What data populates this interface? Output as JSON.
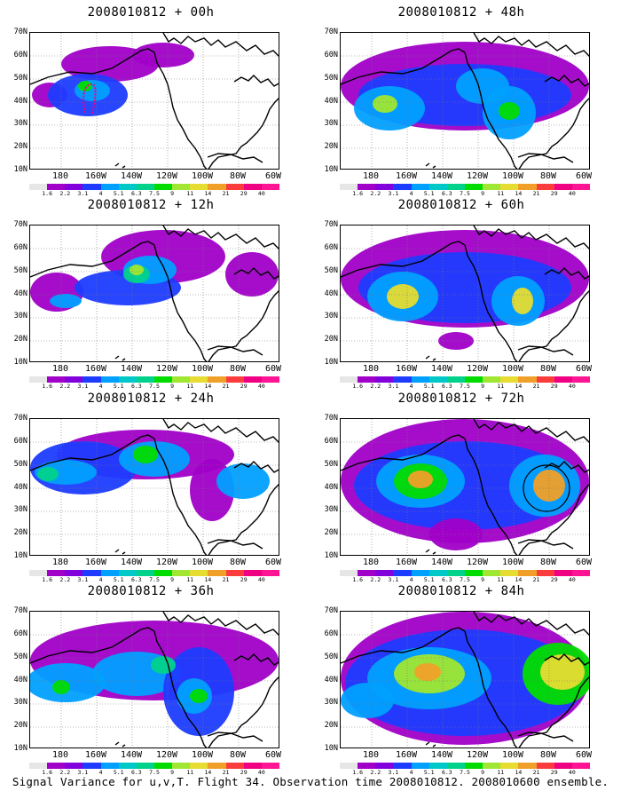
{
  "caption": "Signal Variance for u,v,T. Flight 34. Observation time 2008010812. 2008010600 ensemble.",
  "lat_labels": [
    "70N",
    "60N",
    "50N",
    "40N",
    "30N",
    "20N",
    "10N"
  ],
  "lon_labels": [
    "180",
    "160W",
    "140W",
    "120W",
    "100W",
    "80W",
    "60W"
  ],
  "colorbar": {
    "levels": [
      "1.6",
      "2.2",
      "3.1",
      "4",
      "5.1",
      "6.3",
      "7.5",
      "9",
      "11",
      "14",
      "21",
      "29",
      "40"
    ],
    "colors": [
      "#e6e6e6",
      "#a000c8",
      "#8200dc",
      "#1e3cff",
      "#00a0ff",
      "#00c8c8",
      "#00d28c",
      "#00dc00",
      "#a0e632",
      "#e6dc32",
      "#f0a028",
      "#fa3c3c",
      "#f00082",
      "#ff1493"
    ]
  },
  "panels": [
    {
      "title": "2008010812 + 00h"
    },
    {
      "title": "2008010812 + 12h"
    },
    {
      "title": "2008010812 + 24h"
    },
    {
      "title": "2008010812 + 36h"
    },
    {
      "title": "2008010812 + 48h"
    },
    {
      "title": "2008010812 + 60h"
    },
    {
      "title": "2008010812 + 72h"
    },
    {
      "title": "2008010812 + 84h"
    }
  ]
}
